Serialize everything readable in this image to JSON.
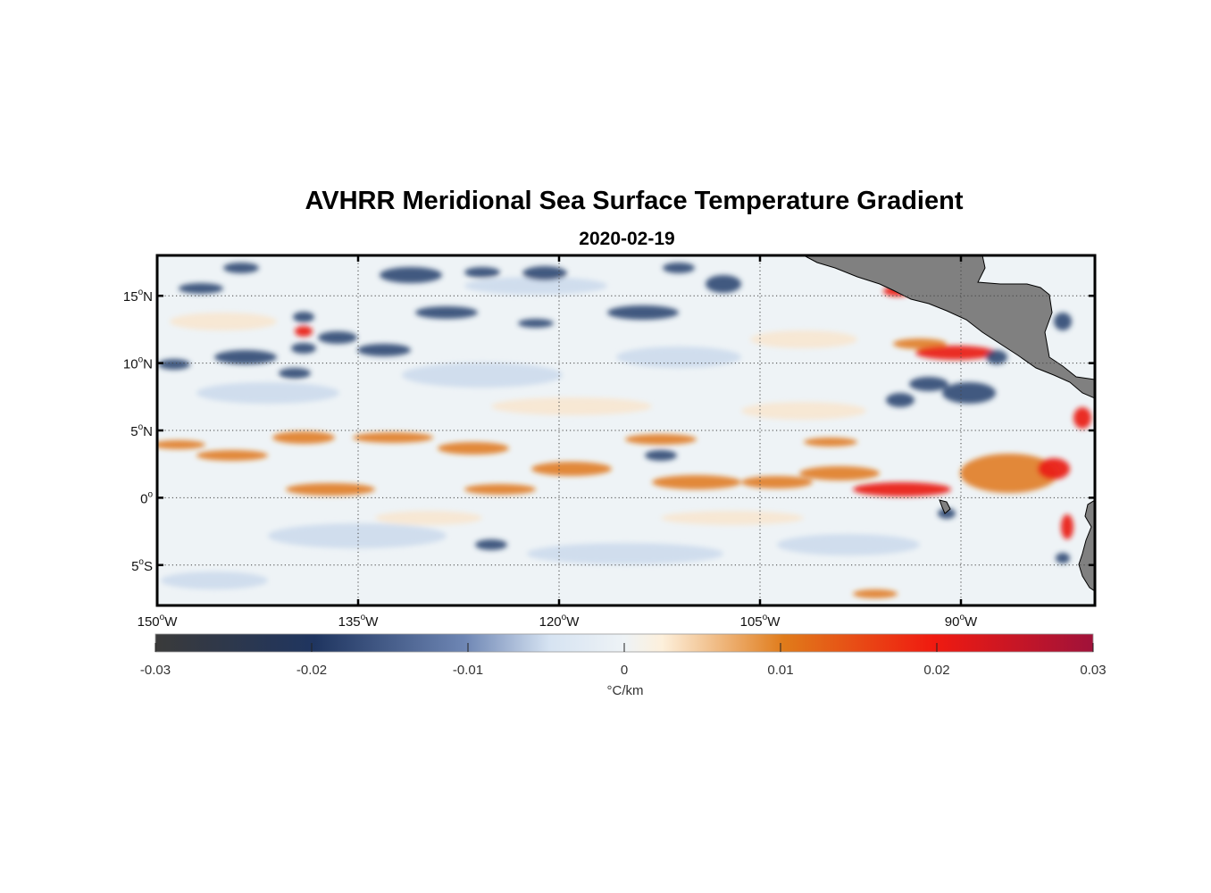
{
  "figure": {
    "title": "AVHRR Meridional Sea Surface Temperature Gradient",
    "date": "2020-02-19"
  },
  "map": {
    "lon_range": [
      -150,
      -80
    ],
    "lat_range": [
      -8,
      18
    ],
    "lon_ticks": [
      {
        "value": -150,
        "deg": "150",
        "hemi": "W"
      },
      {
        "value": -135,
        "deg": "135",
        "hemi": "W"
      },
      {
        "value": -120,
        "deg": "120",
        "hemi": "W"
      },
      {
        "value": -105,
        "deg": "105",
        "hemi": "W"
      },
      {
        "value": -90,
        "deg": "90",
        "hemi": "W"
      }
    ],
    "lat_ticks": [
      {
        "value": 15,
        "deg": "15",
        "hemi": "N"
      },
      {
        "value": 10,
        "deg": "10",
        "hemi": "N"
      },
      {
        "value": 5,
        "deg": "5",
        "hemi": "N"
      },
      {
        "value": 0,
        "deg": "0",
        "hemi": ""
      },
      {
        "value": -5,
        "deg": "5",
        "hemi": "S"
      }
    ],
    "grid": "dotted",
    "land_color": "#808080"
  },
  "colorbar": {
    "min": -0.03,
    "max": 0.03,
    "tick_labels": [
      "-0.03",
      "-0.02",
      "-0.01",
      "0",
      "0.01",
      "0.02",
      "0.03"
    ],
    "units": "°C/km",
    "colors": [
      "#3a3a3a",
      "#1f3560",
      "#d6e3f2",
      "#fdf0dc",
      "#e07b1a",
      "#f01a10",
      "#a0123a"
    ]
  }
}
